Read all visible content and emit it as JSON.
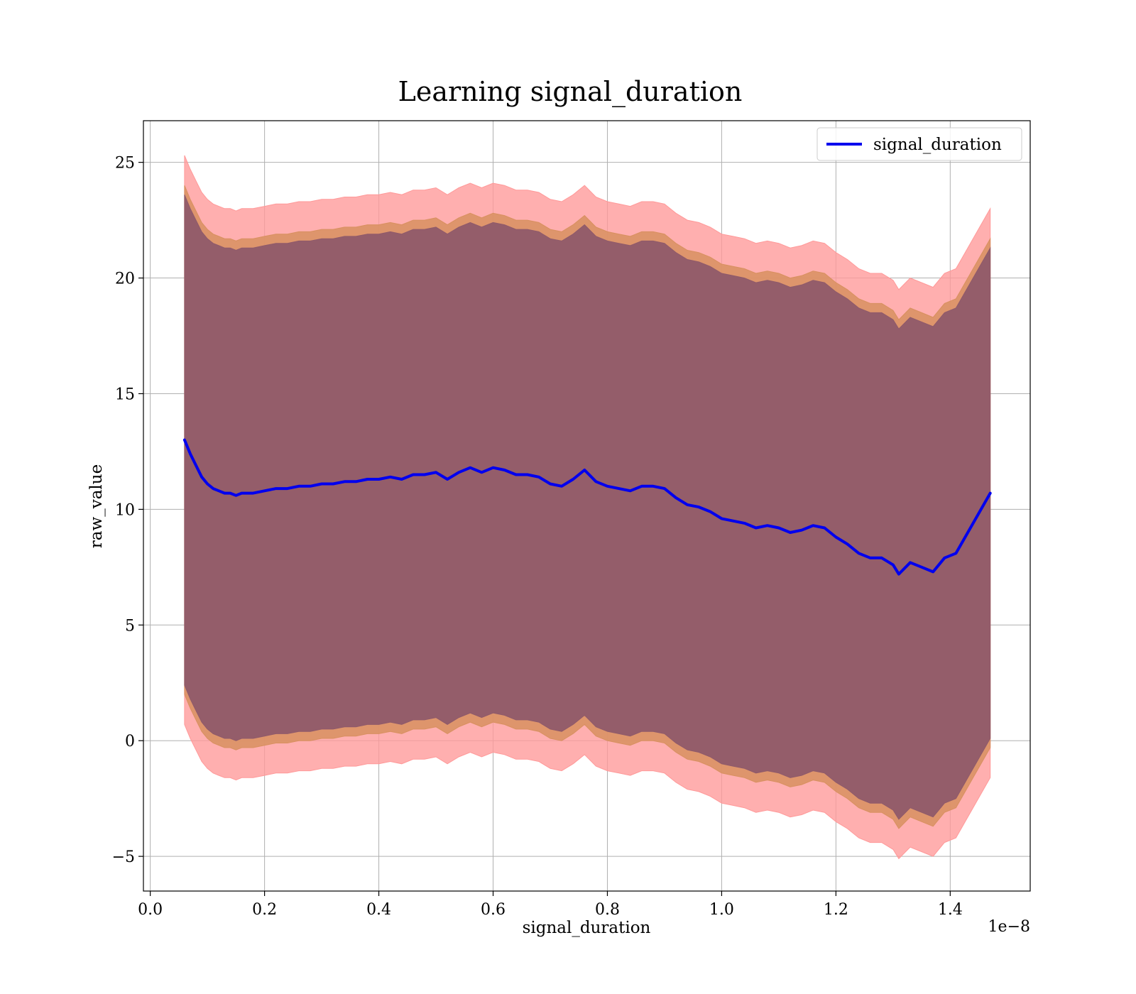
{
  "chart_data": {
    "type": "line",
    "title": "Learning signal_duration",
    "xlabel": "signal_duration",
    "ylabel": "raw_value",
    "x_offset_label": "1e−8",
    "xlim": [
      -0.012,
      1.54
    ],
    "ylim": [
      -6.5,
      26.8
    ],
    "x_ticks": [
      0.0,
      0.2,
      0.4,
      0.6,
      0.8,
      1.0,
      1.2,
      1.4
    ],
    "x_tick_labels": [
      "0.0",
      "0.2",
      "0.4",
      "0.6",
      "0.8",
      "1.0",
      "1.2",
      "1.4"
    ],
    "y_ticks": [
      -5,
      0,
      5,
      10,
      15,
      20,
      25
    ],
    "y_tick_labels": [
      "−5",
      "0",
      "5",
      "10",
      "15",
      "20",
      "25"
    ],
    "grid": true,
    "legend": {
      "position": "top-right",
      "entries": [
        "signal_duration"
      ]
    },
    "colors": {
      "line": "#0000ee",
      "band_outer": "#ff9999",
      "band_middle": "#d89060",
      "band_inner": "#8f5a6a"
    },
    "series": [
      {
        "name": "signal_duration",
        "x": [
          0.06,
          0.07,
          0.08,
          0.09,
          0.1,
          0.11,
          0.12,
          0.13,
          0.14,
          0.15,
          0.16,
          0.18,
          0.2,
          0.22,
          0.24,
          0.26,
          0.28,
          0.3,
          0.32,
          0.34,
          0.36,
          0.38,
          0.4,
          0.42,
          0.44,
          0.46,
          0.48,
          0.5,
          0.52,
          0.54,
          0.56,
          0.58,
          0.6,
          0.62,
          0.64,
          0.66,
          0.68,
          0.7,
          0.72,
          0.74,
          0.76,
          0.78,
          0.8,
          0.82,
          0.84,
          0.86,
          0.88,
          0.9,
          0.92,
          0.94,
          0.96,
          0.98,
          1.0,
          1.02,
          1.04,
          1.06,
          1.08,
          1.1,
          1.12,
          1.14,
          1.16,
          1.18,
          1.2,
          1.22,
          1.24,
          1.26,
          1.28,
          1.3,
          1.31,
          1.33,
          1.35,
          1.37,
          1.39,
          1.41,
          1.47
        ],
        "y": [
          13.0,
          12.4,
          11.9,
          11.4,
          11.1,
          10.9,
          10.8,
          10.7,
          10.7,
          10.6,
          10.7,
          10.7,
          10.8,
          10.9,
          10.9,
          11.0,
          11.0,
          11.1,
          11.1,
          11.2,
          11.2,
          11.3,
          11.3,
          11.4,
          11.3,
          11.5,
          11.5,
          11.6,
          11.3,
          11.6,
          11.8,
          11.6,
          11.8,
          11.7,
          11.5,
          11.5,
          11.4,
          11.1,
          11.0,
          11.3,
          11.7,
          11.2,
          11.0,
          10.9,
          10.8,
          11.0,
          11.0,
          10.9,
          10.5,
          10.2,
          10.1,
          9.9,
          9.6,
          9.5,
          9.4,
          9.2,
          9.3,
          9.2,
          9.0,
          9.1,
          9.3,
          9.2,
          8.8,
          8.5,
          8.1,
          7.9,
          7.9,
          7.6,
          7.2,
          7.7,
          7.5,
          7.3,
          7.9,
          8.1,
          10.7
        ]
      }
    ],
    "bands": [
      {
        "lower_offset": -12.3,
        "upper_offset": 12.3
      },
      {
        "lower_offset": -11.0,
        "upper_offset": 11.0
      },
      {
        "lower_offset": -10.6,
        "upper_offset": 10.6
      }
    ]
  }
}
